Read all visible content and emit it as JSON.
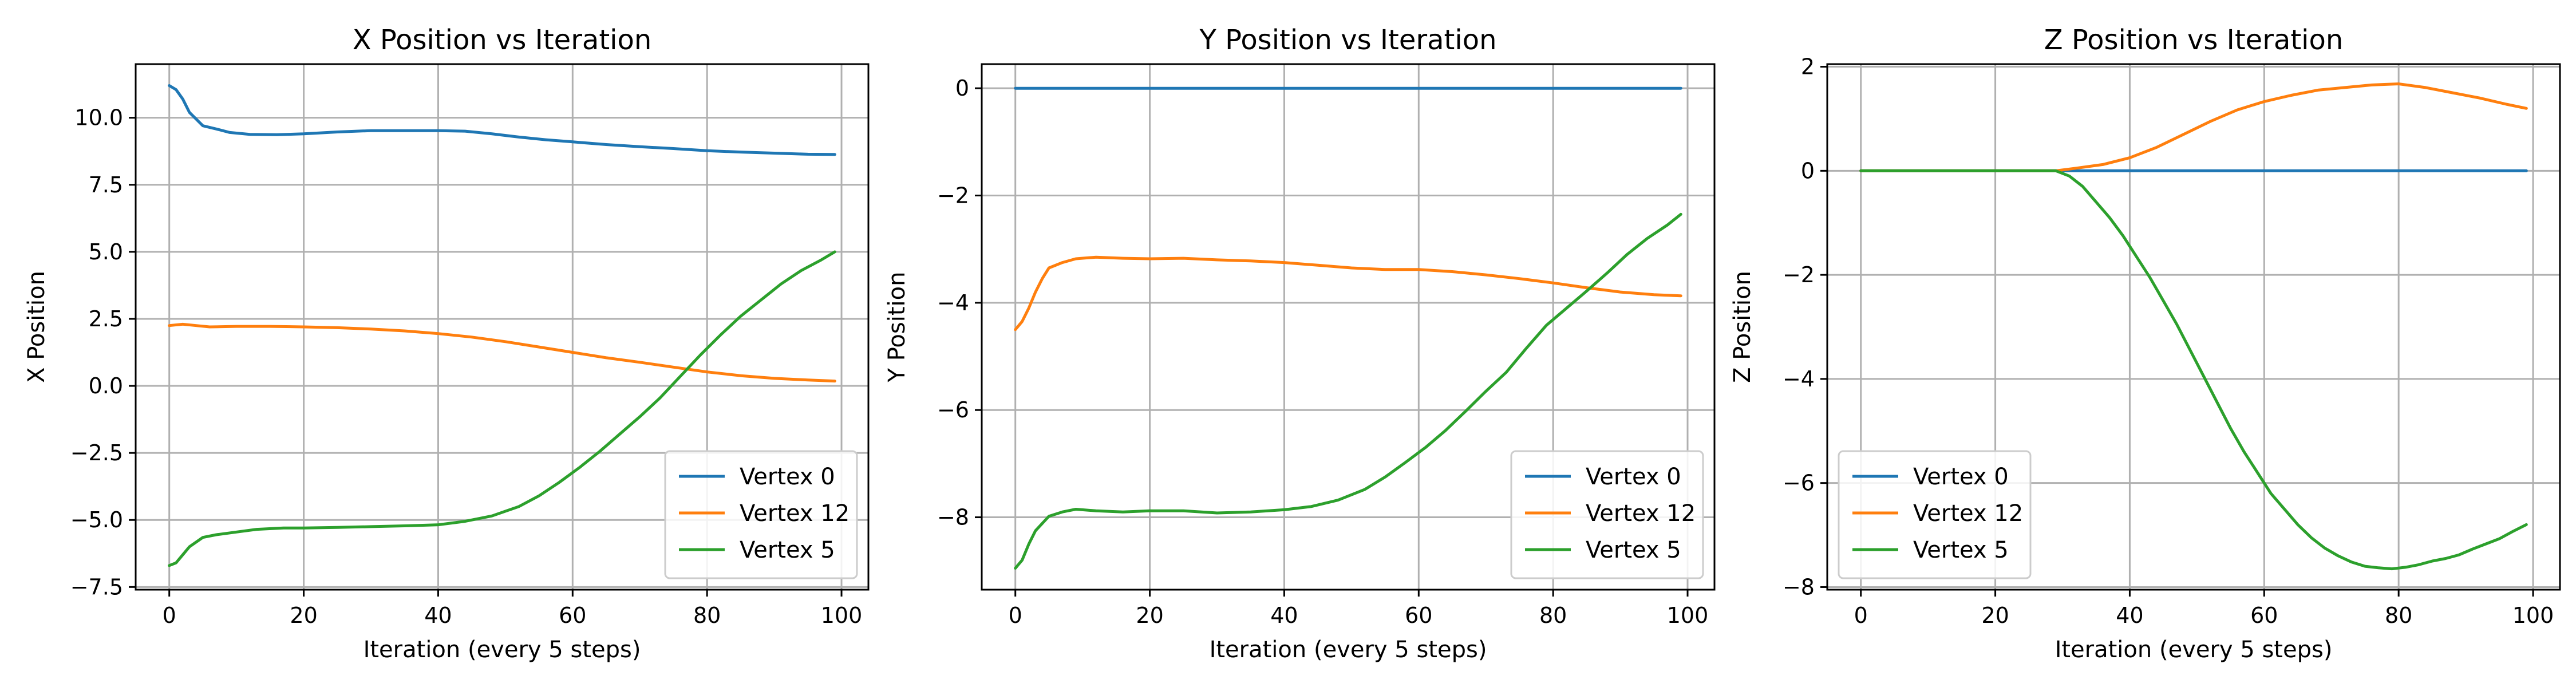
{
  "chart_data": [
    {
      "type": "line",
      "title": "X Position vs Iteration",
      "xlabel": "Iteration (every 5 steps)",
      "ylabel": "X Position",
      "xlim": [
        -5,
        104
      ],
      "ylim": [
        -7.6,
        12.0
      ],
      "xticks": [
        0,
        20,
        40,
        60,
        80,
        100
      ],
      "xtick_labels": [
        "0",
        "20",
        "40",
        "60",
        "80",
        "100"
      ],
      "yticks": [
        -7.5,
        -5.0,
        -2.5,
        0.0,
        2.5,
        5.0,
        7.5,
        10.0
      ],
      "ytick_labels": [
        "−7.5",
        "−5.0",
        "−2.5",
        "0.0",
        "2.5",
        "5.0",
        "7.5",
        "10.0"
      ],
      "grid": true,
      "legend_position": "lower-right",
      "series": [
        {
          "name": "Vertex 0",
          "color": "#1f77b4",
          "points": [
            [
              0,
              11.2
            ],
            [
              1,
              11.05
            ],
            [
              2,
              10.7
            ],
            [
              3,
              10.2
            ],
            [
              5,
              9.7
            ],
            [
              7,
              9.58
            ],
            [
              9,
              9.45
            ],
            [
              12,
              9.38
            ],
            [
              16,
              9.37
            ],
            [
              20,
              9.4
            ],
            [
              25,
              9.47
            ],
            [
              30,
              9.52
            ],
            [
              35,
              9.52
            ],
            [
              40,
              9.52
            ],
            [
              44,
              9.5
            ],
            [
              48,
              9.4
            ],
            [
              52,
              9.28
            ],
            [
              56,
              9.18
            ],
            [
              60,
              9.1
            ],
            [
              65,
              9.0
            ],
            [
              70,
              8.92
            ],
            [
              75,
              8.85
            ],
            [
              80,
              8.77
            ],
            [
              85,
              8.72
            ],
            [
              90,
              8.68
            ],
            [
              95,
              8.64
            ],
            [
              99,
              8.63
            ]
          ]
        },
        {
          "name": "Vertex 12",
          "color": "#ff7f0e",
          "points": [
            [
              0,
              2.25
            ],
            [
              2,
              2.3
            ],
            [
              4,
              2.25
            ],
            [
              6,
              2.2
            ],
            [
              10,
              2.22
            ],
            [
              15,
              2.22
            ],
            [
              20,
              2.2
            ],
            [
              25,
              2.17
            ],
            [
              30,
              2.12
            ],
            [
              35,
              2.05
            ],
            [
              40,
              1.95
            ],
            [
              45,
              1.82
            ],
            [
              50,
              1.65
            ],
            [
              55,
              1.45
            ],
            [
              60,
              1.25
            ],
            [
              65,
              1.05
            ],
            [
              70,
              0.88
            ],
            [
              75,
              0.7
            ],
            [
              80,
              0.52
            ],
            [
              85,
              0.38
            ],
            [
              90,
              0.28
            ],
            [
              95,
              0.22
            ],
            [
              99,
              0.18
            ]
          ]
        },
        {
          "name": "Vertex 5",
          "color": "#2ca02c",
          "points": [
            [
              0,
              -6.7
            ],
            [
              1,
              -6.6
            ],
            [
              2,
              -6.3
            ],
            [
              3,
              -6.0
            ],
            [
              5,
              -5.65
            ],
            [
              7,
              -5.55
            ],
            [
              10,
              -5.45
            ],
            [
              13,
              -5.35
            ],
            [
              17,
              -5.3
            ],
            [
              20,
              -5.3
            ],
            [
              25,
              -5.28
            ],
            [
              30,
              -5.25
            ],
            [
              35,
              -5.22
            ],
            [
              40,
              -5.18
            ],
            [
              44,
              -5.05
            ],
            [
              48,
              -4.85
            ],
            [
              52,
              -4.5
            ],
            [
              55,
              -4.1
            ],
            [
              58,
              -3.6
            ],
            [
              61,
              -3.05
            ],
            [
              64,
              -2.45
            ],
            [
              67,
              -1.8
            ],
            [
              70,
              -1.15
            ],
            [
              73,
              -0.45
            ],
            [
              76,
              0.35
            ],
            [
              79,
              1.15
            ],
            [
              82,
              1.9
            ],
            [
              85,
              2.6
            ],
            [
              88,
              3.2
            ],
            [
              91,
              3.8
            ],
            [
              94,
              4.3
            ],
            [
              97,
              4.7
            ],
            [
              99,
              5.0
            ]
          ]
        }
      ]
    },
    {
      "type": "line",
      "title": "Y Position vs Iteration",
      "xlabel": "Iteration (every 5 steps)",
      "ylabel": "Y Position",
      "xlim": [
        -5,
        104
      ],
      "ylim": [
        -9.35,
        0.45
      ],
      "xticks": [
        0,
        20,
        40,
        60,
        80,
        100
      ],
      "xtick_labels": [
        "0",
        "20",
        "40",
        "60",
        "80",
        "100"
      ],
      "yticks": [
        -8,
        -6,
        -4,
        -2,
        0
      ],
      "ytick_labels": [
        "−8",
        "−6",
        "−4",
        "−2",
        "0"
      ],
      "grid": true,
      "legend_position": "lower-right",
      "series": [
        {
          "name": "Vertex 0",
          "color": "#1f77b4",
          "points": [
            [
              0,
              0.0
            ],
            [
              99,
              0.0
            ]
          ]
        },
        {
          "name": "Vertex 12",
          "color": "#ff7f0e",
          "points": [
            [
              0,
              -4.5
            ],
            [
              1,
              -4.35
            ],
            [
              2,
              -4.1
            ],
            [
              3,
              -3.8
            ],
            [
              4,
              -3.55
            ],
            [
              5,
              -3.35
            ],
            [
              7,
              -3.25
            ],
            [
              9,
              -3.18
            ],
            [
              12,
              -3.15
            ],
            [
              16,
              -3.17
            ],
            [
              20,
              -3.18
            ],
            [
              25,
              -3.17
            ],
            [
              30,
              -3.2
            ],
            [
              35,
              -3.22
            ],
            [
              40,
              -3.25
            ],
            [
              45,
              -3.3
            ],
            [
              50,
              -3.35
            ],
            [
              55,
              -3.38
            ],
            [
              60,
              -3.38
            ],
            [
              65,
              -3.42
            ],
            [
              70,
              -3.48
            ],
            [
              75,
              -3.55
            ],
            [
              80,
              -3.63
            ],
            [
              85,
              -3.72
            ],
            [
              90,
              -3.8
            ],
            [
              95,
              -3.85
            ],
            [
              99,
              -3.87
            ]
          ]
        },
        {
          "name": "Vertex 5",
          "color": "#2ca02c",
          "points": [
            [
              0,
              -8.95
            ],
            [
              1,
              -8.8
            ],
            [
              2,
              -8.5
            ],
            [
              3,
              -8.25
            ],
            [
              5,
              -7.98
            ],
            [
              7,
              -7.9
            ],
            [
              9,
              -7.85
            ],
            [
              12,
              -7.88
            ],
            [
              16,
              -7.9
            ],
            [
              20,
              -7.88
            ],
            [
              25,
              -7.88
            ],
            [
              30,
              -7.92
            ],
            [
              35,
              -7.9
            ],
            [
              40,
              -7.86
            ],
            [
              44,
              -7.8
            ],
            [
              48,
              -7.68
            ],
            [
              52,
              -7.48
            ],
            [
              55,
              -7.25
            ],
            [
              58,
              -6.98
            ],
            [
              61,
              -6.7
            ],
            [
              64,
              -6.38
            ],
            [
              67,
              -6.02
            ],
            [
              70,
              -5.65
            ],
            [
              73,
              -5.3
            ],
            [
              76,
              -4.85
            ],
            [
              79,
              -4.42
            ],
            [
              82,
              -4.1
            ],
            [
              85,
              -3.78
            ],
            [
              88,
              -3.45
            ],
            [
              91,
              -3.1
            ],
            [
              94,
              -2.8
            ],
            [
              97,
              -2.55
            ],
            [
              99,
              -2.35
            ]
          ]
        }
      ]
    },
    {
      "type": "line",
      "title": "Z Position vs Iteration",
      "xlabel": "Iteration (every 5 steps)",
      "ylabel": "Z Position",
      "xlim": [
        -5,
        104
      ],
      "ylim": [
        -8.05,
        2.05
      ],
      "xticks": [
        0,
        20,
        40,
        60,
        80,
        100
      ],
      "xtick_labels": [
        "0",
        "20",
        "40",
        "60",
        "80",
        "100"
      ],
      "yticks": [
        -8,
        -6,
        -4,
        -2,
        0,
        2
      ],
      "ytick_labels": [
        "−8",
        "−6",
        "−4",
        "−2",
        "0",
        "2"
      ],
      "grid": true,
      "legend_position": "lower-left",
      "series": [
        {
          "name": "Vertex 0",
          "color": "#1f77b4",
          "points": [
            [
              0,
              0.0
            ],
            [
              99,
              0.0
            ]
          ]
        },
        {
          "name": "Vertex 12",
          "color": "#ff7f0e",
          "points": [
            [
              0,
              0.0
            ],
            [
              29,
              0.0
            ],
            [
              32,
              0.05
            ],
            [
              36,
              0.12
            ],
            [
              40,
              0.25
            ],
            [
              44,
              0.45
            ],
            [
              48,
              0.7
            ],
            [
              52,
              0.95
            ],
            [
              56,
              1.17
            ],
            [
              60,
              1.33
            ],
            [
              64,
              1.45
            ],
            [
              68,
              1.55
            ],
            [
              72,
              1.6
            ],
            [
              76,
              1.65
            ],
            [
              80,
              1.67
            ],
            [
              84,
              1.6
            ],
            [
              88,
              1.5
            ],
            [
              92,
              1.4
            ],
            [
              96,
              1.28
            ],
            [
              99,
              1.2
            ]
          ]
        },
        {
          "name": "Vertex 5",
          "color": "#2ca02c",
          "points": [
            [
              0,
              0.0
            ],
            [
              29,
              0.0
            ],
            [
              31,
              -0.1
            ],
            [
              33,
              -0.3
            ],
            [
              35,
              -0.6
            ],
            [
              37,
              -0.9
            ],
            [
              39,
              -1.25
            ],
            [
              41,
              -1.65
            ],
            [
              43,
              -2.05
            ],
            [
              45,
              -2.5
            ],
            [
              47,
              -2.95
            ],
            [
              49,
              -3.45
            ],
            [
              51,
              -3.95
            ],
            [
              53,
              -4.45
            ],
            [
              55,
              -4.95
            ],
            [
              57,
              -5.4
            ],
            [
              59,
              -5.8
            ],
            [
              61,
              -6.2
            ],
            [
              63,
              -6.5
            ],
            [
              65,
              -6.8
            ],
            [
              67,
              -7.05
            ],
            [
              69,
              -7.25
            ],
            [
              71,
              -7.4
            ],
            [
              73,
              -7.52
            ],
            [
              75,
              -7.6
            ],
            [
              77,
              -7.63
            ],
            [
              79,
              -7.65
            ],
            [
              81,
              -7.62
            ],
            [
              83,
              -7.57
            ],
            [
              85,
              -7.5
            ],
            [
              87,
              -7.45
            ],
            [
              89,
              -7.38
            ],
            [
              91,
              -7.27
            ],
            [
              93,
              -7.17
            ],
            [
              95,
              -7.07
            ],
            [
              97,
              -6.93
            ],
            [
              99,
              -6.8
            ]
          ]
        }
      ]
    }
  ]
}
